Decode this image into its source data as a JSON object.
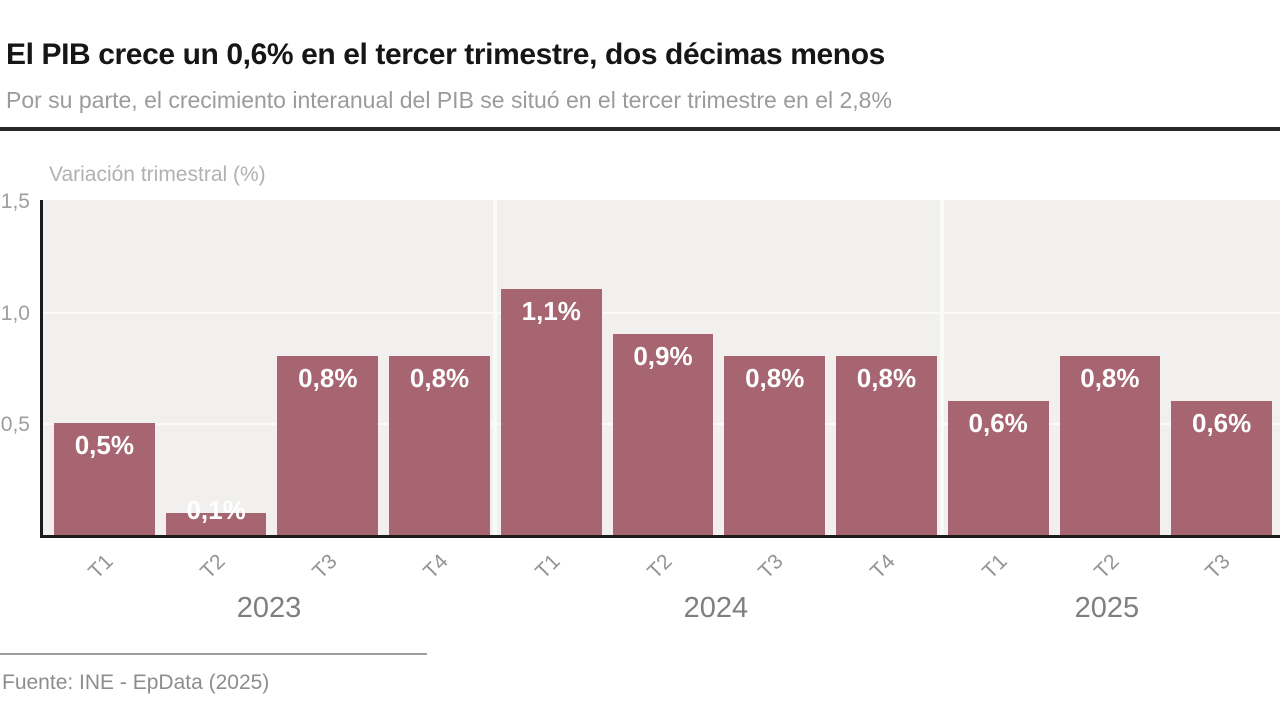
{
  "header": {
    "title": "El PIB crece un 0,6% en el tercer trimestre, dos décimas menos",
    "subtitle": "Por su parte, el crecimiento interanual del PIB se situó en el tercer trimestre en el 2,8%"
  },
  "chart": {
    "axis_title": "Variación trimestral (%)"
  },
  "chart_data": {
    "type": "bar",
    "title": "El PIB crece un 0,6% en el tercer trimestre, dos décimas menos",
    "subtitle": "Por su parte, el crecimiento interanual del PIB se situó en el tercer trimestre en el 2,8%",
    "ylabel": "Variación trimestral (%)",
    "xlabel": "",
    "ylim": [
      0,
      1.5
    ],
    "yticks": [
      {
        "value": 1.5,
        "label": "1,5"
      },
      {
        "value": 1.0,
        "label": "1,0"
      },
      {
        "value": 0.5,
        "label": "0,5"
      }
    ],
    "categories": [
      "T1",
      "T2",
      "T3",
      "T4",
      "T1",
      "T2",
      "T3",
      "T4",
      "T1",
      "T2",
      "T3"
    ],
    "values": [
      0.5,
      0.1,
      0.8,
      0.8,
      1.1,
      0.9,
      0.8,
      0.8,
      0.6,
      0.8,
      0.6
    ],
    "bar_labels": [
      "0,5%",
      "0,1%",
      "0,8%",
      "0,8%",
      "1,1%",
      "0,9%",
      "0,8%",
      "0,8%",
      "0,6%",
      "0,8%",
      "0,6%"
    ],
    "year_groups": [
      {
        "label": "2023",
        "count": 4
      },
      {
        "label": "2024",
        "count": 4
      },
      {
        "label": "2025",
        "count": 3
      }
    ],
    "bar_color": "#a66570",
    "plot_background": "#f1f0ee",
    "gridlines": "on",
    "legend": "none"
  },
  "footer": {
    "source": "Fuente: INE - EpData (2025)"
  }
}
